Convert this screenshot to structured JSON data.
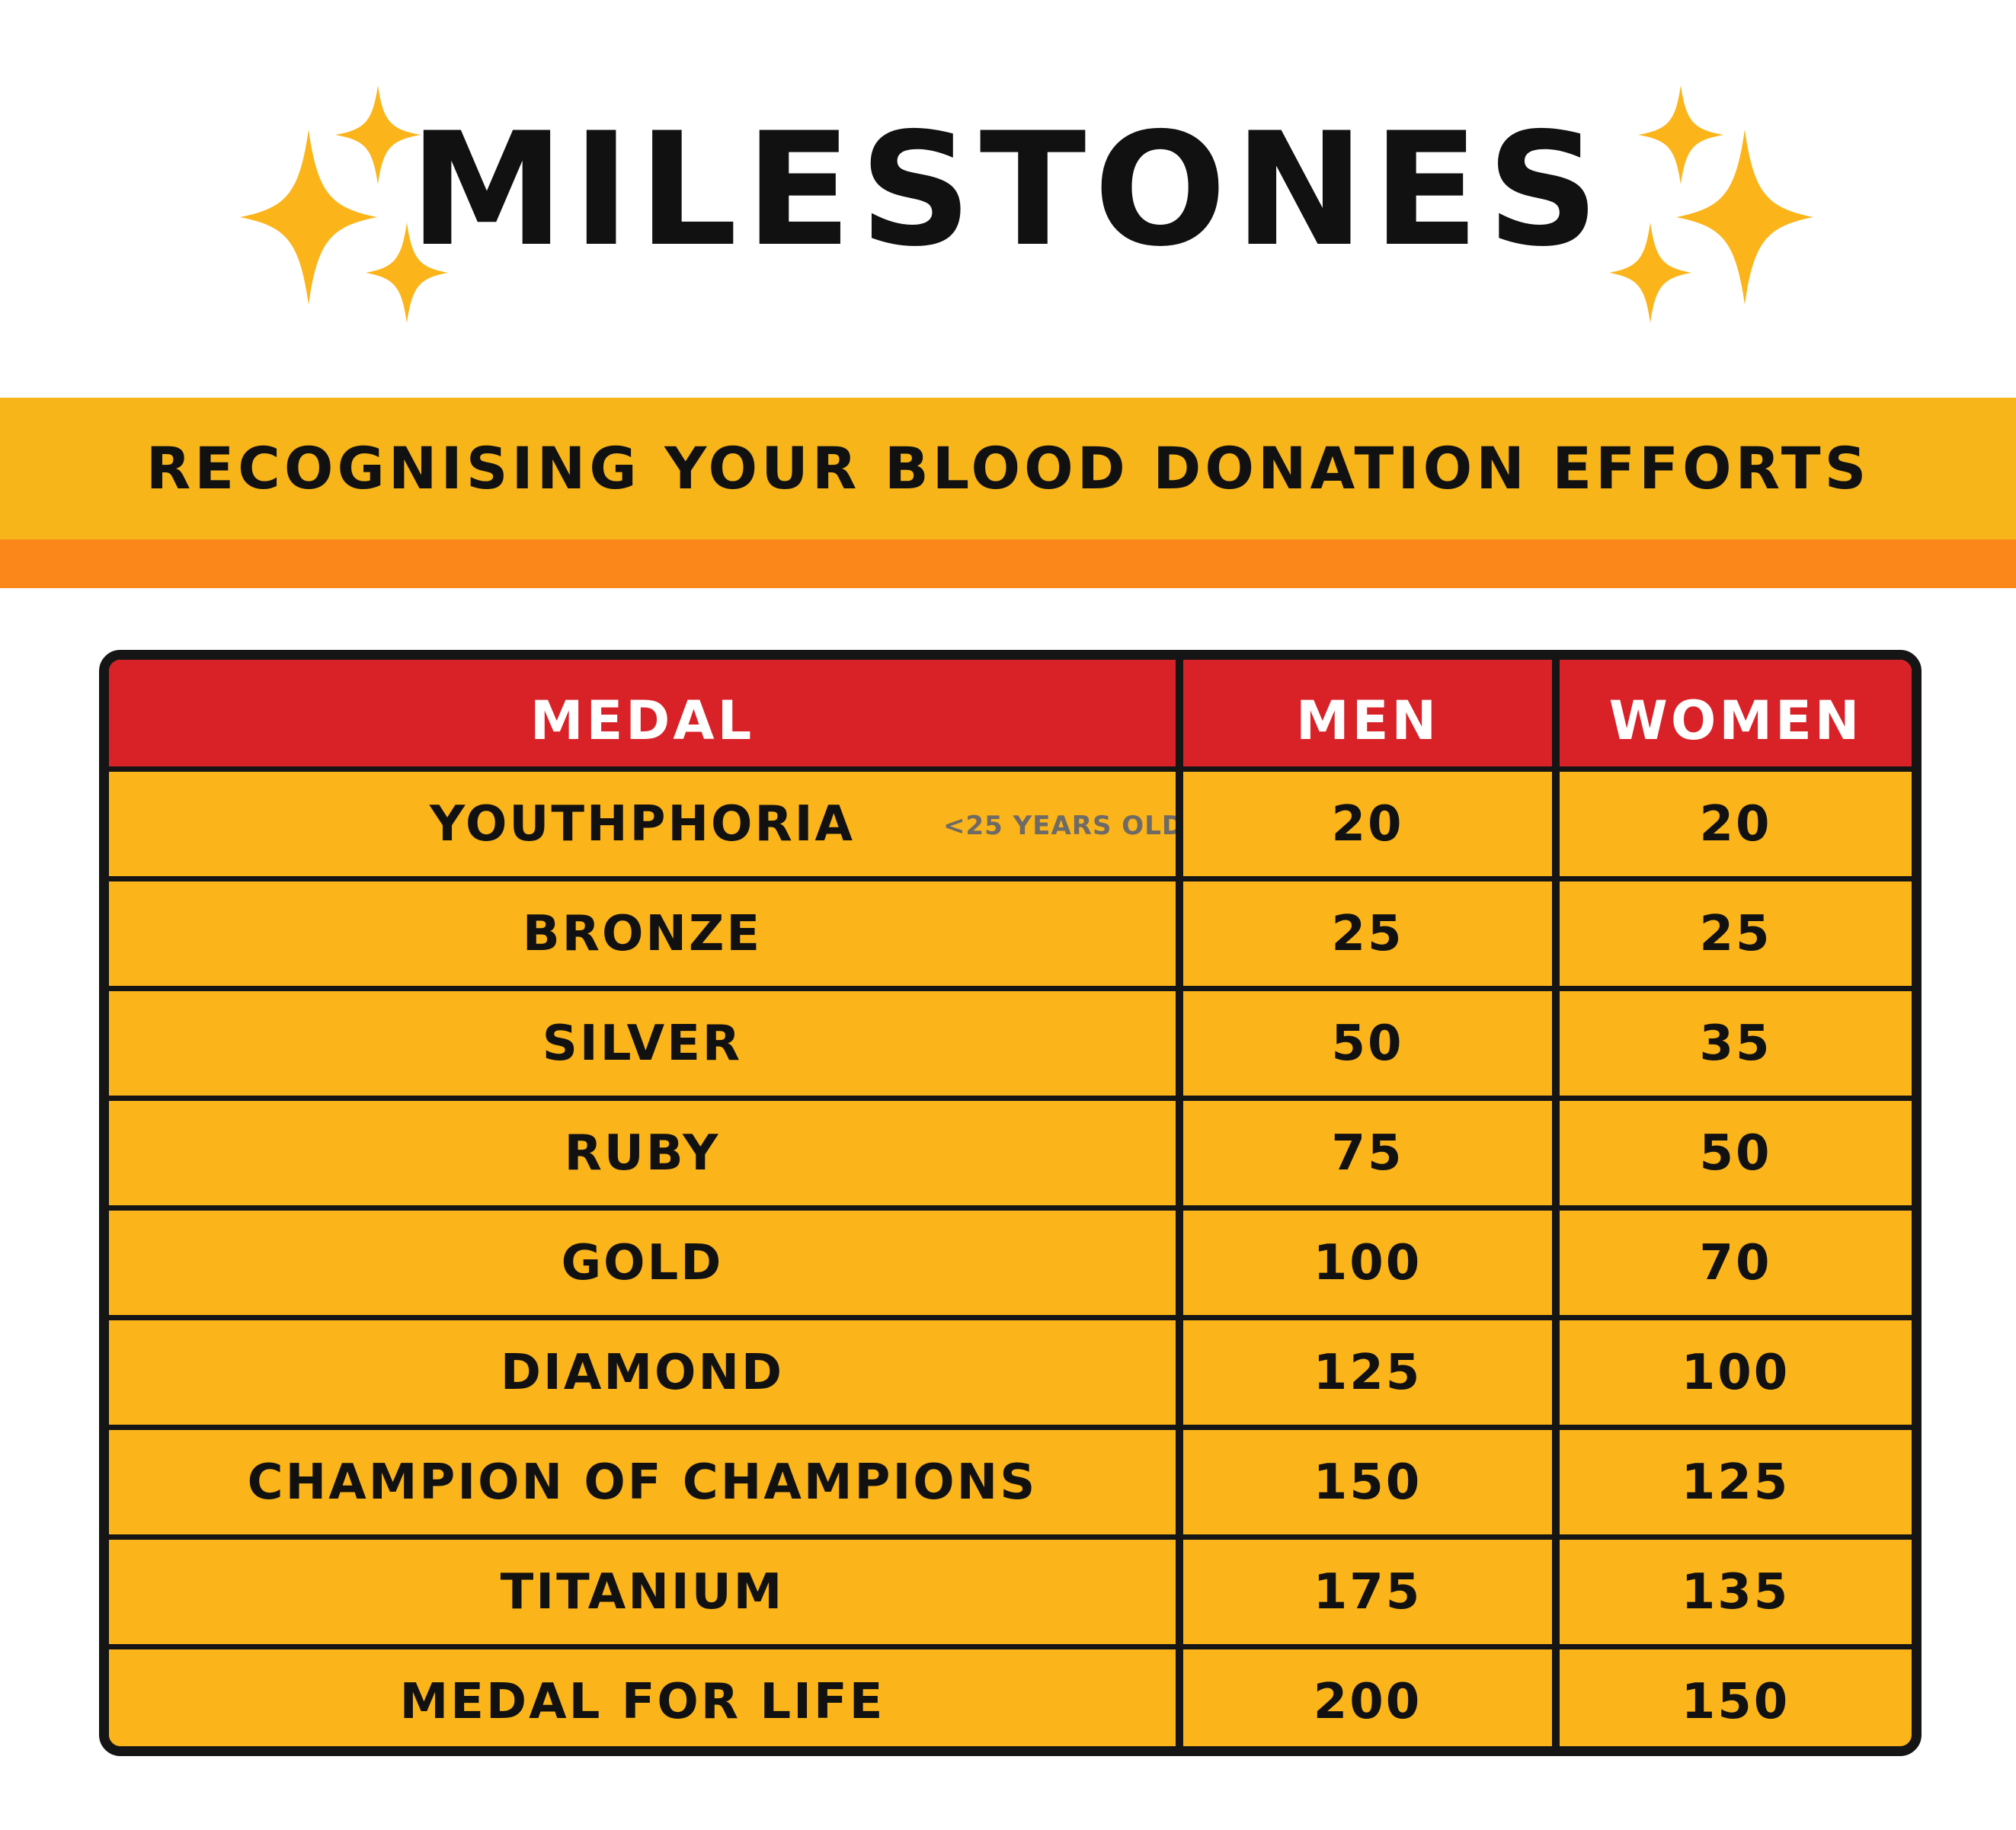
{
  "title": "MILESTONES",
  "subtitle": "RECOGNISING YOUR BLOOD DONATION EFFORTS",
  "colors": {
    "sparkle": "#fbb41a",
    "banner": "#f7b519",
    "stripe": "#fb871a",
    "header": "#d92128",
    "table_fill": "#fbb41a",
    "border": "#151515"
  },
  "icons": [
    "sparkle-icon"
  ],
  "table": {
    "headers": [
      "MEDAL",
      "MEN",
      "WOMEN"
    ],
    "rows": [
      {
        "medal": "YOUTHPHORIA",
        "note": "<25 YEARS OLD",
        "men": "20",
        "women": "20"
      },
      {
        "medal": "BRONZE",
        "note": "",
        "men": "25",
        "women": "25"
      },
      {
        "medal": "SILVER",
        "note": "",
        "men": "50",
        "women": "35"
      },
      {
        "medal": "RUBY",
        "note": "",
        "men": "75",
        "women": "50"
      },
      {
        "medal": "GOLD",
        "note": "",
        "men": "100",
        "women": "70"
      },
      {
        "medal": "DIAMOND",
        "note": "",
        "men": "125",
        "women": "100"
      },
      {
        "medal": "CHAMPION OF CHAMPIONS",
        "note": "",
        "men": "150",
        "women": "125"
      },
      {
        "medal": "TITANIUM",
        "note": "",
        "men": "175",
        "women": "135"
      },
      {
        "medal": "MEDAL FOR LIFE",
        "note": "",
        "men": "200",
        "women": "150"
      }
    ]
  }
}
